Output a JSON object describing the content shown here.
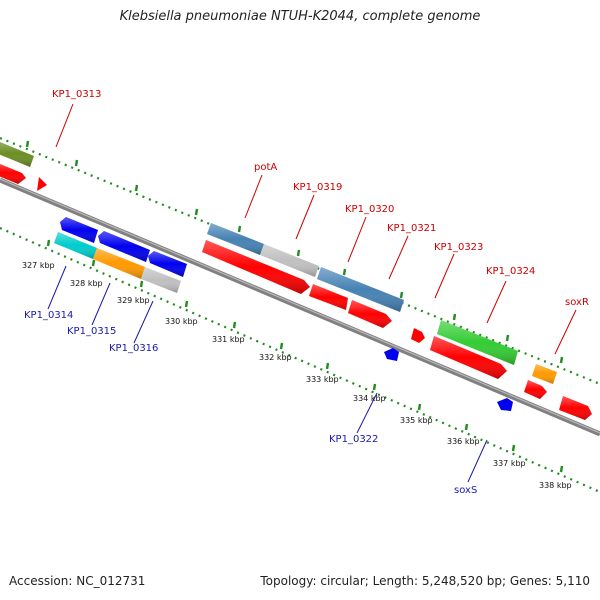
{
  "title": "Klebsiella pneumoniae NTUH-K2044, complete genome",
  "accession": "Accession: NC_012731",
  "topology": "Topology: circular; Length: 5,248,520 bp; Genes: 5,110",
  "colors": {
    "olive": "#6b8e23",
    "red": "#ff0000",
    "blue": "#0000ee",
    "steelblue": "#4682b4",
    "silver": "#c0c0c0",
    "cyan": "#00cccc",
    "orange": "#ff9900",
    "green": "#33cc33",
    "backbone": "#808080",
    "ticks": "#228b22",
    "forward_label": "#cc0000",
    "reverse_label": "#1a1aa6"
  },
  "forward_labels": [
    "KP1_0313",
    "potA",
    "KP1_0319",
    "KP1_0320",
    "KP1_0321",
    "KP1_0323",
    "KP1_0324",
    "soxR"
  ],
  "reverse_labels": [
    "KP1_0314",
    "KP1_0315",
    "KP1_0316",
    "KP1_0322",
    "soxS"
  ],
  "kbp_labels": [
    "327 kbp",
    "328 kbp",
    "329 kbp",
    "330 kbp",
    "331 kbp",
    "332 kbp",
    "333 kbp",
    "334 kbp",
    "335 kbp",
    "336 kbp",
    "337 kbp",
    "338 kbp"
  ]
}
